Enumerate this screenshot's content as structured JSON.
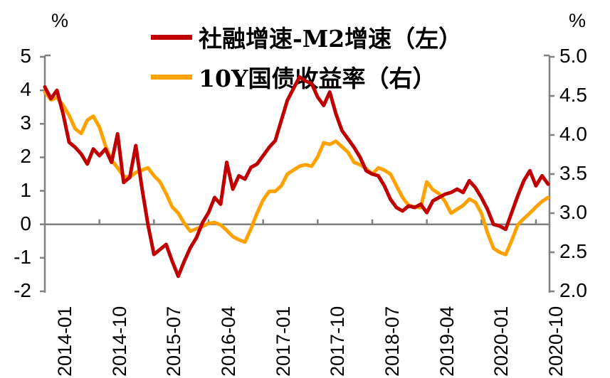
{
  "chart_data": {
    "type": "line",
    "title": "",
    "legend_position": "top-center",
    "x": [
      "2014-01",
      "2014-02",
      "2014-03",
      "2014-04",
      "2014-05",
      "2014-06",
      "2014-07",
      "2014-08",
      "2014-09",
      "2014-10",
      "2014-11",
      "2014-12",
      "2015-01",
      "2015-02",
      "2015-03",
      "2015-04",
      "2015-05",
      "2015-06",
      "2015-07",
      "2015-08",
      "2015-09",
      "2015-10",
      "2015-11",
      "2015-12",
      "2016-01",
      "2016-02",
      "2016-03",
      "2016-04",
      "2016-05",
      "2016-06",
      "2016-07",
      "2016-08",
      "2016-09",
      "2016-10",
      "2016-11",
      "2016-12",
      "2017-01",
      "2017-02",
      "2017-03",
      "2017-04",
      "2017-05",
      "2017-06",
      "2017-07",
      "2017-08",
      "2017-09",
      "2017-10",
      "2017-11",
      "2017-12",
      "2018-01",
      "2018-02",
      "2018-03",
      "2018-04",
      "2018-05",
      "2018-06",
      "2018-07",
      "2018-08",
      "2018-09",
      "2018-10",
      "2018-11",
      "2018-12",
      "2019-01",
      "2019-02",
      "2019-03",
      "2019-04",
      "2019-05",
      "2019-06",
      "2019-07",
      "2019-08",
      "2019-09",
      "2019-10",
      "2019-11",
      "2019-12",
      "2020-01",
      "2020-02",
      "2020-03",
      "2020-04",
      "2020-05",
      "2020-06",
      "2020-07",
      "2020-08",
      "2020-09",
      "2020-10",
      "2020-11",
      "2020-12"
    ],
    "x_tick_indices": [
      0,
      9,
      18,
      27,
      36,
      45,
      54,
      63,
      72,
      81
    ],
    "x_tick_labels": [
      "2014-01",
      "2014-10",
      "2015-07",
      "2016-04",
      "2017-01",
      "2017-10",
      "2018-07",
      "2019-04",
      "2020-01",
      "2020-10"
    ],
    "series": [
      {
        "name": "社融增速-M2增速（左）",
        "axis": "left",
        "color": "#C00000",
        "values": [
          4.1,
          3.75,
          4.0,
          3.3,
          2.45,
          2.3,
          2.1,
          1.8,
          2.25,
          2.05,
          2.25,
          1.85,
          2.7,
          1.25,
          1.4,
          2.35,
          1.1,
          0.0,
          -0.9,
          -0.75,
          -0.6,
          -1.1,
          -1.55,
          -1.1,
          -0.7,
          -0.4,
          0.05,
          0.35,
          0.8,
          0.6,
          1.85,
          1.05,
          1.45,
          1.35,
          1.7,
          1.8,
          2.05,
          2.3,
          2.5,
          3.1,
          3.7,
          4.05,
          4.4,
          4.28,
          4.2,
          3.8,
          3.55,
          3.95,
          3.3,
          2.8,
          2.55,
          2.3,
          2.0,
          1.6,
          1.5,
          1.45,
          1.15,
          0.75,
          0.5,
          0.4,
          0.55,
          0.5,
          0.6,
          0.35,
          0.7,
          0.8,
          0.9,
          0.95,
          1.05,
          0.95,
          1.3,
          1.1,
          0.8,
          0.45,
          0.0,
          -0.05,
          -0.15,
          0.35,
          0.85,
          1.3,
          1.6,
          1.15,
          1.45,
          1.2
        ]
      },
      {
        "name": "10Y国债收益率（右）",
        "axis": "right",
        "color": "#FFA200",
        "values": [
          4.55,
          4.45,
          4.48,
          4.38,
          4.25,
          4.08,
          4.02,
          4.19,
          4.24,
          4.1,
          3.86,
          3.68,
          3.58,
          3.47,
          3.46,
          3.52,
          3.55,
          3.58,
          3.48,
          3.4,
          3.25,
          3.08,
          3.0,
          2.87,
          2.77,
          2.8,
          2.83,
          2.87,
          2.88,
          2.85,
          2.78,
          2.7,
          2.66,
          2.63,
          2.8,
          3.0,
          3.17,
          3.28,
          3.28,
          3.35,
          3.5,
          3.55,
          3.6,
          3.62,
          3.6,
          3.72,
          3.9,
          3.88,
          3.92,
          3.85,
          3.78,
          3.65,
          3.62,
          3.57,
          3.5,
          3.58,
          3.55,
          3.5,
          3.35,
          3.2,
          3.1,
          3.08,
          3.07,
          3.4,
          3.3,
          3.25,
          3.15,
          3.0,
          3.05,
          3.1,
          3.18,
          3.14,
          3.0,
          2.75,
          2.55,
          2.5,
          2.47,
          2.65,
          2.85,
          2.93,
          3.0,
          3.08,
          3.15,
          3.2
        ]
      }
    ],
    "left_axis": {
      "unit": "%",
      "min": -2,
      "max": 5,
      "tick_step": 1,
      "ticks": [
        "5",
        "4",
        "3",
        "2",
        "1",
        "0",
        "-1",
        "-2"
      ]
    },
    "right_axis": {
      "unit": "%",
      "min": 2.0,
      "max": 5.0,
      "tick_step": 0.5,
      "ticks": [
        "5.0",
        "4.5",
        "4.0",
        "3.5",
        "3.0",
        "2.5",
        "2.0"
      ]
    },
    "grid": {
      "zero_line_left": 0
    },
    "colors": {
      "axis": "#808080",
      "text": "#000000",
      "background": "#FFFFFF"
    }
  }
}
